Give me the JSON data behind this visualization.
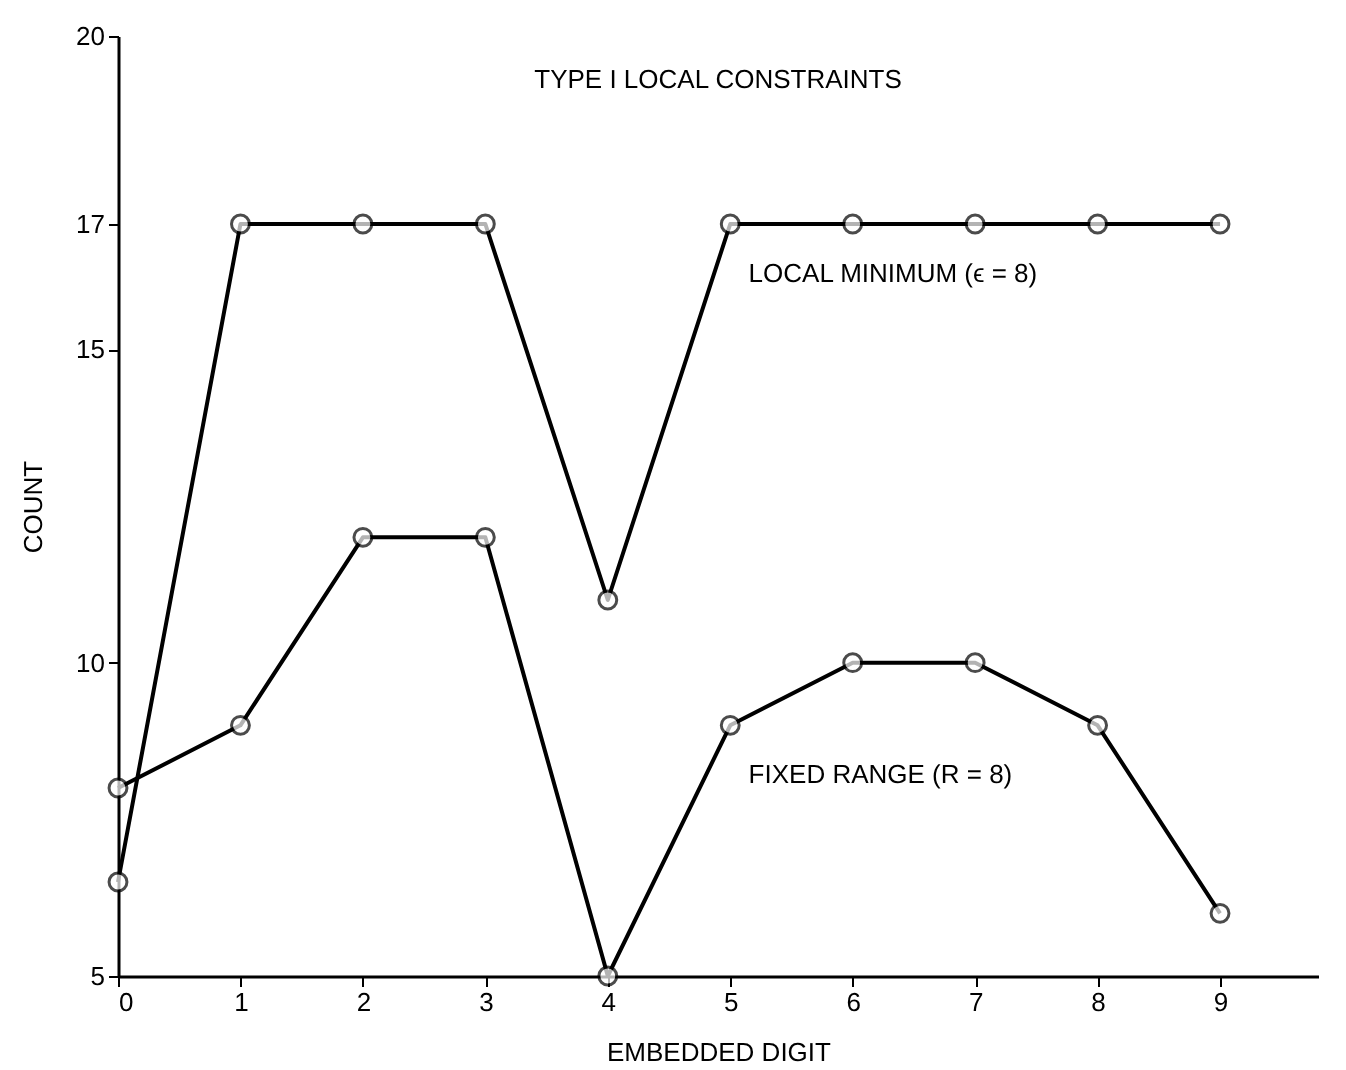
{
  "chart_data": {
    "type": "line",
    "title": "TYPE I LOCAL CONSTRAINTS",
    "xlabel": "EMBEDDED DIGIT",
    "ylabel": "COUNT",
    "x": [
      0,
      1,
      2,
      3,
      4,
      5,
      6,
      7,
      8,
      9
    ],
    "series": [
      {
        "name": "LOCAL MINIMUM (ϵ = 8)",
        "color": "#000000",
        "values": [
          6.5,
          17,
          17,
          17,
          11,
          17,
          17,
          17,
          17,
          17
        ]
      },
      {
        "name": "FIXED RANGE (R = 8)",
        "color": "#000000",
        "values": [
          8,
          9,
          12,
          12,
          5,
          9,
          10,
          10,
          9,
          6
        ]
      }
    ],
    "xlim": [
      0,
      9.8
    ],
    "xticks": [
      0,
      1,
      2,
      3,
      4,
      5,
      6,
      7,
      8,
      9
    ],
    "ylim": [
      5,
      20
    ],
    "yticks": [
      5,
      10,
      15,
      17,
      20
    ],
    "grid": false,
    "legend": false,
    "marker": "circle",
    "line_style": "solid"
  }
}
